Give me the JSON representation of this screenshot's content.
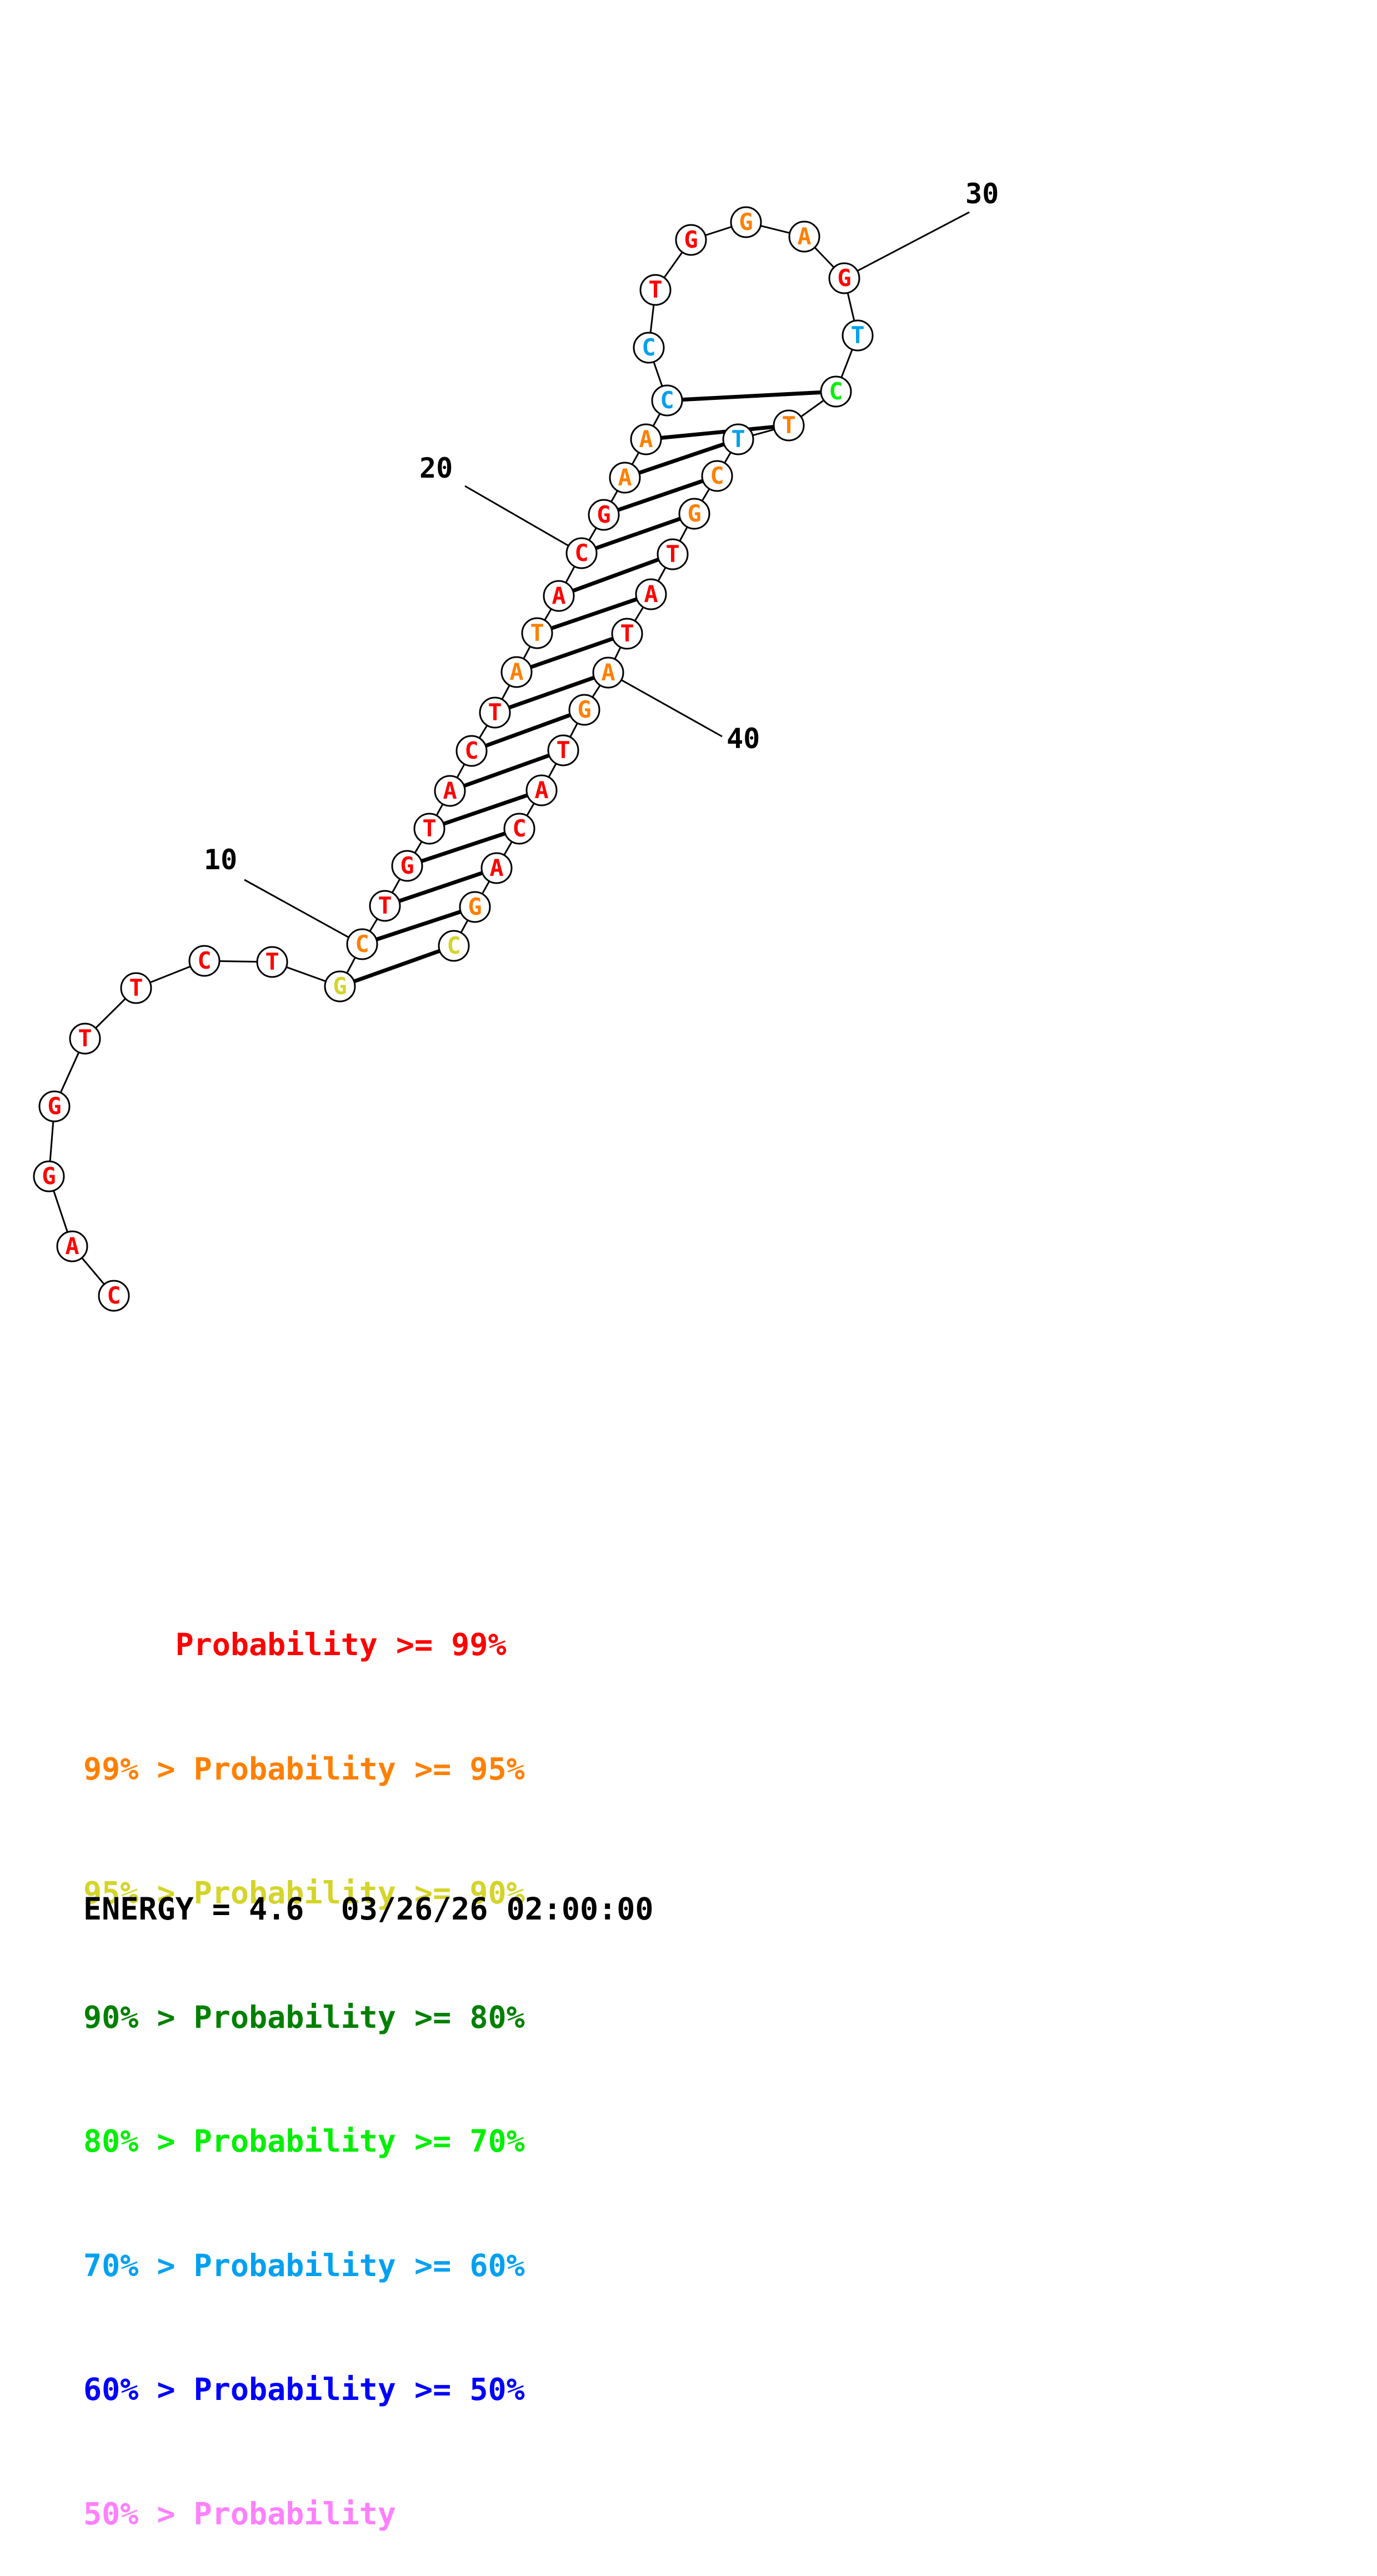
{
  "structure": {
    "sequence": [
      "C",
      "A",
      "G",
      "G",
      "T",
      "T",
      "C",
      "T",
      "G",
      "C",
      "T",
      "G",
      "T",
      "A",
      "C",
      "T",
      "A",
      "T",
      "A",
      "C",
      "G",
      "A",
      "A",
      "C",
      "C",
      "T",
      "G",
      "G",
      "A",
      "G",
      "T",
      "C",
      "T",
      "T",
      "C",
      "G",
      "T",
      "A",
      "T",
      "A",
      "G",
      "T",
      "A",
      "C",
      "A",
      "G",
      "C"
    ],
    "colors": [
      "red",
      "red",
      "red",
      "red",
      "red",
      "red",
      "red",
      "red",
      "yellow",
      "orange",
      "red",
      "red",
      "red",
      "red",
      "red",
      "red",
      "orange",
      "orange",
      "red",
      "red",
      "red",
      "orange",
      "orange",
      "lightblue",
      "lightblue",
      "red",
      "red",
      "orange",
      "orange",
      "red",
      "lightblue",
      "green",
      "orange",
      "lightblue",
      "orange",
      "orange",
      "red",
      "red",
      "red",
      "orange",
      "orange",
      "red",
      "red",
      "red",
      "red",
      "orange",
      "yellow"
    ],
    "pairs": [
      [
        9,
        47
      ],
      [
        10,
        46
      ],
      [
        11,
        45
      ],
      [
        12,
        44
      ],
      [
        13,
        43
      ],
      [
        14,
        42
      ],
      [
        15,
        41
      ],
      [
        16,
        40
      ],
      [
        17,
        39
      ],
      [
        18,
        38
      ],
      [
        19,
        37
      ],
      [
        20,
        36
      ],
      [
        21,
        35
      ],
      [
        22,
        34
      ],
      [
        23,
        33
      ],
      [
        24,
        32
      ]
    ],
    "numbering": [
      {
        "label": "10",
        "nucleotide": 10
      },
      {
        "label": "20",
        "nucleotide": 20
      },
      {
        "label": "30",
        "nucleotide": 30
      },
      {
        "label": "40",
        "nucleotide": 40
      }
    ]
  },
  "palette": {
    "red": "#ff0000",
    "orange": "#ff8000",
    "yellow": "#d4d42a",
    "darkgreen": "#008000",
    "green": "#00ee00",
    "lightblue": "#00a0f0",
    "blue": "#0000ff",
    "pink": "#ff80ff"
  },
  "legend": [
    {
      "text": "     Probability >= 99%",
      "color": "red"
    },
    {
      "text": "99% > Probability >= 95%",
      "color": "orange"
    },
    {
      "text": "95% > Probability >= 90%",
      "color": "yellow"
    },
    {
      "text": "90% > Probability >= 80%",
      "color": "darkgreen"
    },
    {
      "text": "80% > Probability >= 70%",
      "color": "green"
    },
    {
      "text": "70% > Probability >= 60%",
      "color": "lightblue"
    },
    {
      "text": "60% > Probability >= 50%",
      "color": "blue"
    },
    {
      "text": "50% > Probability",
      "color": "pink"
    }
  ],
  "energy_line": "ENERGY = 4.6  03/26/26 02:00:00"
}
